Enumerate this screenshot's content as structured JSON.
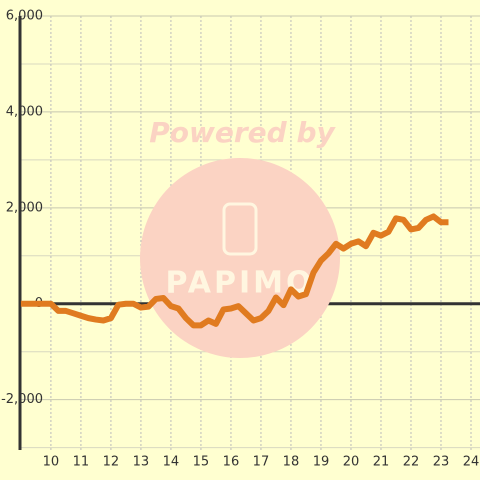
{
  "chart_data": {
    "type": "line",
    "watermark": "Powered by",
    "watermark_logo": "PAPIMO",
    "x": [
      9,
      9.25,
      9.5,
      9.75,
      10,
      10.25,
      10.5,
      10.75,
      11,
      11.25,
      11.5,
      11.75,
      12,
      12.25,
      12.5,
      12.75,
      13,
      13.25,
      13.5,
      13.75,
      14,
      14.25,
      14.5,
      14.75,
      15,
      15.25,
      15.5,
      15.75,
      16,
      16.25,
      16.5,
      16.75,
      17,
      17.25,
      17.5,
      17.75,
      18,
      18.25,
      18.5,
      18.75,
      19,
      19.25,
      19.5,
      19.75,
      20,
      20.25,
      20.5,
      20.75,
      21,
      21.25,
      21.5,
      21.75,
      22,
      22.25,
      22.5,
      22.75,
      23,
      23.25
    ],
    "series": [
      {
        "color": "#e07b20",
        "values": [
          0,
          0,
          0,
          0,
          0,
          -150,
          -150,
          -200,
          -250,
          -300,
          -330,
          -350,
          -300,
          -20,
          0,
          0,
          -80,
          -60,
          100,
          120,
          -50,
          -100,
          -300,
          -450,
          -450,
          -350,
          -420,
          -120,
          -100,
          -50,
          -200,
          -350,
          -300,
          -150,
          130,
          -30,
          300,
          150,
          200,
          650,
          900,
          1050,
          1250,
          1150,
          1250,
          1300,
          1200,
          1480,
          1420,
          1500,
          1780,
          1750,
          1550,
          1580,
          1750,
          1820,
          1700,
          1700
        ]
      }
    ],
    "xlim": [
      8.97,
      24.3
    ],
    "xticks": [
      10,
      11,
      12,
      13,
      14,
      15,
      16,
      17,
      18,
      19,
      20,
      21,
      22,
      23,
      24
    ],
    "ylim": [
      -3050,
      6000
    ],
    "yticks": [
      {
        "value": 6000,
        "label": "6,000"
      },
      {
        "value": 4000,
        "label": "4,000"
      },
      {
        "value": 2000,
        "label": "2,000"
      },
      0,
      {
        "value": -2000,
        "label": "-2,000"
      }
    ],
    "yminor": [
      5000,
      3000,
      1000,
      -1000,
      -3000
    ],
    "grid": true
  }
}
